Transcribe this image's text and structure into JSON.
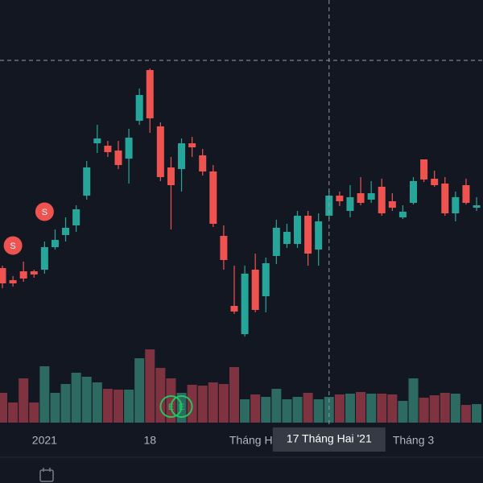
{
  "chart_data": {
    "type": "candlestick",
    "ylim": [
      0,
      525
    ],
    "volume_lim": [
      0,
      525
    ],
    "up_color": "#26a69a",
    "down_color": "#ef5350",
    "up_volume_color": "#2c6a62",
    "down_volume_color": "#7f3340",
    "categories": [
      null,
      null,
      null,
      null,
      "2021",
      null,
      null,
      null,
      null,
      null,
      null,
      null,
      null,
      null,
      "18",
      null,
      null,
      null,
      null,
      null,
      null,
      null,
      null,
      null,
      "Tháng Hai",
      null,
      null,
      null,
      null,
      null,
      null,
      null,
      null,
      null,
      null,
      null,
      null,
      null,
      null,
      "Tháng 3",
      null,
      null,
      null,
      null,
      null,
      null
    ],
    "open": [
      192,
      177,
      188,
      188,
      190,
      218,
      233,
      245,
      282,
      347,
      344,
      338,
      328,
      375,
      438,
      368,
      317,
      315,
      347,
      332,
      312,
      232,
      145,
      110,
      190,
      157,
      207,
      222,
      222,
      257,
      215,
      257,
      282,
      263,
      285,
      277,
      293,
      275,
      255,
      273,
      327,
      303,
      297,
      260,
      295,
      267
    ],
    "high": [
      195,
      182,
      200,
      190,
      225,
      240,
      255,
      270,
      325,
      370,
      350,
      350,
      365,
      415,
      440,
      373,
      330,
      353,
      355,
      340,
      320,
      245,
      195,
      195,
      210,
      205,
      252,
      247,
      263,
      263,
      260,
      288,
      287,
      295,
      305,
      300,
      303,
      285,
      270,
      305,
      327,
      313,
      305,
      287,
      303,
      280
    ],
    "low": [
      167,
      169,
      175,
      180,
      185,
      215,
      225,
      237,
      277,
      335,
      330,
      315,
      297,
      370,
      360,
      300,
      240,
      287,
      330,
      307,
      243,
      190,
      135,
      107,
      137,
      137,
      197,
      217,
      217,
      195,
      195,
      253,
      269,
      255,
      270,
      273,
      257,
      263,
      253,
      271,
      299,
      293,
      257,
      250,
      271,
      263
    ],
    "close": [
      173,
      173,
      179,
      184,
      218,
      227,
      242,
      265,
      317,
      353,
      336,
      320,
      354,
      407,
      378,
      305,
      295,
      347,
      342,
      312,
      247,
      202,
      138,
      185,
      140,
      198,
      242,
      237,
      257,
      210,
      250,
      282,
      275,
      280,
      273,
      285,
      260,
      267,
      262,
      300,
      302,
      295,
      260,
      280,
      273,
      270
    ],
    "volume": [
      37,
      25,
      55,
      25,
      70,
      37,
      48,
      62,
      57,
      50,
      42,
      41,
      41,
      80,
      91,
      68,
      55,
      37,
      47,
      46,
      50,
      48,
      69,
      29,
      35,
      32,
      42,
      29,
      32,
      37,
      29,
      32,
      35,
      36,
      38,
      36,
      36,
      35,
      27,
      55,
      31,
      34,
      37,
      36,
      22,
      23
    ],
    "markers": [
      {
        "x": 1,
        "y": 220,
        "text": "S",
        "color": "#ef5350"
      },
      {
        "x": 4,
        "y": 262,
        "text": "S",
        "color": "#ef5350"
      },
      {
        "x": 16,
        "y": 20,
        "text": "E",
        "color": "#22c55e"
      },
      {
        "x": 17,
        "y": 20,
        "text": "E",
        "color": "#22c55e"
      }
    ],
    "crosshair": {
      "x": 31,
      "y": 450,
      "label": "17 Tháng Hai '21"
    }
  }
}
